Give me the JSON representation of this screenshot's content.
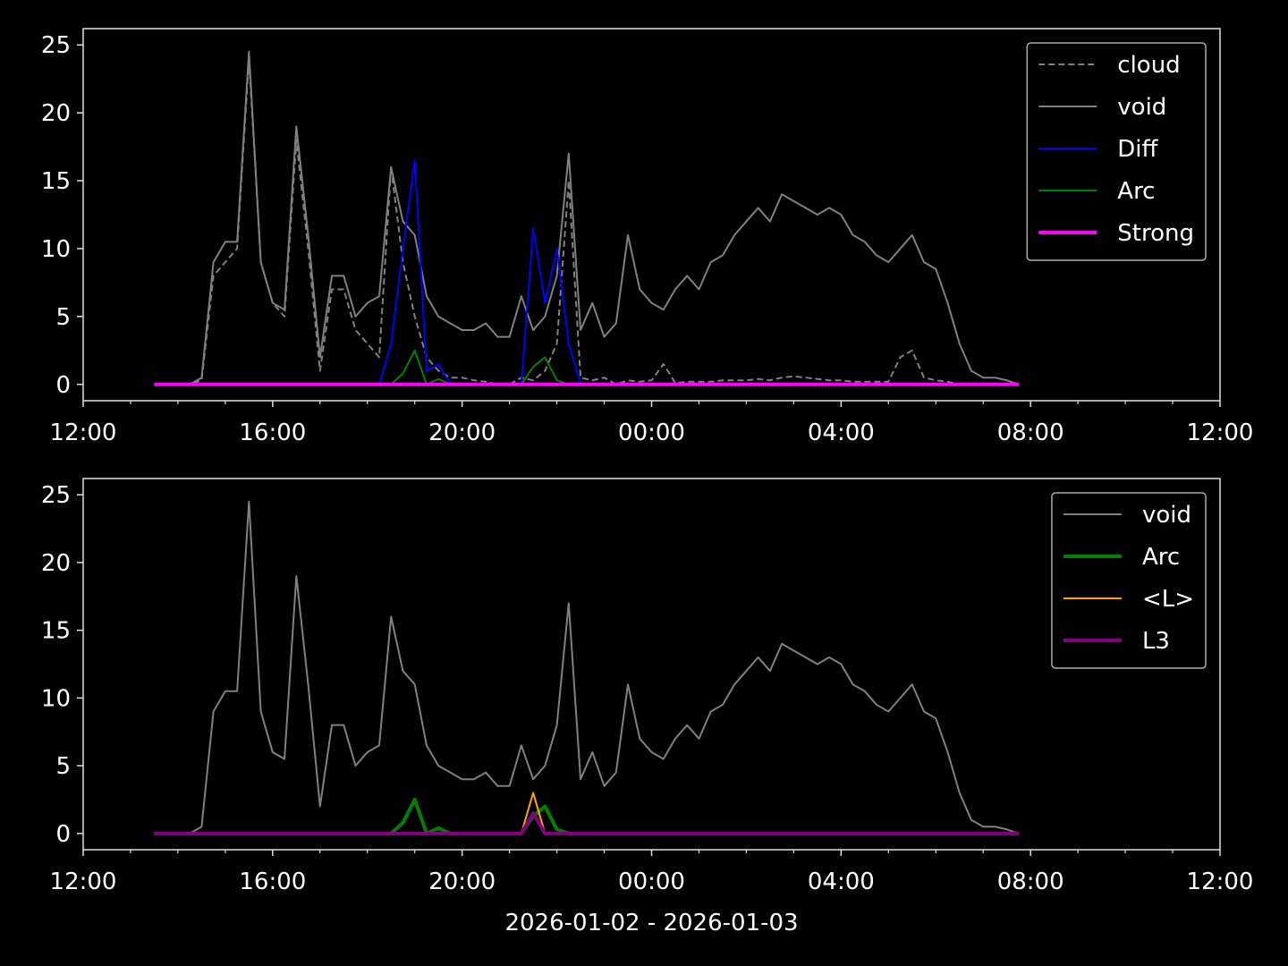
{
  "chart_data": [
    {
      "type": "line",
      "x": [
        13.5,
        13.75,
        14,
        14.25,
        14.5,
        14.75,
        15,
        15.25,
        15.5,
        15.75,
        16,
        16.25,
        16.5,
        16.75,
        17,
        17.25,
        17.5,
        17.75,
        18,
        18.25,
        18.5,
        18.75,
        19,
        19.25,
        19.5,
        19.75,
        20,
        20.25,
        20.5,
        20.75,
        21,
        21.25,
        21.5,
        21.75,
        22,
        22.25,
        22.5,
        22.75,
        23,
        23.25,
        23.5,
        23.75,
        24,
        24.25,
        24.5,
        24.75,
        25,
        25.25,
        25.5,
        25.75,
        26,
        26.25,
        26.5,
        26.75,
        27,
        27.25,
        27.5,
        27.75,
        28,
        28.25,
        28.5,
        28.75,
        29,
        29.25,
        29.5,
        29.75,
        30,
        30.25,
        30.5,
        30.75,
        31,
        31.25,
        31.5,
        31.75
      ],
      "xlim": [
        12,
        36
      ],
      "xticks": [
        {
          "value": 12,
          "label": "12:00"
        },
        {
          "value": 16,
          "label": "16:00"
        },
        {
          "value": 20,
          "label": "20:00"
        },
        {
          "value": 24,
          "label": "00:00"
        },
        {
          "value": 28,
          "label": "04:00"
        },
        {
          "value": 32,
          "label": "08:00"
        },
        {
          "value": 36,
          "label": "12:00"
        }
      ],
      "xminorticks": [
        13,
        14,
        15,
        17,
        18,
        19,
        21,
        22,
        23,
        25,
        26,
        27,
        29,
        30,
        31,
        33,
        34,
        35
      ],
      "ylim": [
        -1.2,
        26.2
      ],
      "yticks": [
        0,
        5,
        10,
        15,
        20,
        25
      ],
      "legend": "upper right",
      "series": [
        {
          "name": "cloud",
          "color": "#808080",
          "linestyle": "dashed",
          "linewidth": 2,
          "values": [
            0,
            0,
            0,
            0,
            0.3,
            8,
            9,
            10,
            24,
            9,
            6,
            5,
            18,
            10,
            1,
            7,
            7,
            4,
            3,
            2,
            16,
            9,
            5,
            2,
            1,
            0.5,
            0.5,
            0.3,
            0.2,
            0,
            0,
            0.5,
            0.3,
            1,
            3,
            15,
            0.5,
            0.3,
            0.5,
            0,
            0.3,
            0.2,
            0.3,
            1.5,
            0.1,
            0.2,
            0.2,
            0.2,
            0.3,
            0.3,
            0.3,
            0.4,
            0.3,
            0.5,
            0.6,
            0.5,
            0.4,
            0.3,
            0.3,
            0.2,
            0.2,
            0.2,
            0.2,
            2,
            2.5,
            0.5,
            0.3,
            0.2,
            0,
            0,
            0,
            0,
            0,
            0
          ]
        },
        {
          "name": "void",
          "color": "#808080",
          "linestyle": "solid",
          "linewidth": 2,
          "values": [
            0,
            0,
            0,
            0,
            0.5,
            9,
            10.5,
            10.5,
            24.5,
            9,
            6,
            5.5,
            19,
            11,
            2,
            8,
            8,
            5,
            6,
            6.5,
            16,
            12,
            11,
            6.5,
            5,
            4.5,
            4,
            4,
            4.5,
            3.5,
            3.5,
            6.5,
            4,
            5,
            8,
            17,
            4,
            6,
            3.5,
            4.5,
            11,
            7,
            6,
            5.5,
            7,
            8,
            7,
            9,
            9.5,
            11,
            12,
            13,
            12,
            14,
            13.5,
            13,
            12.5,
            13,
            12.5,
            11,
            10.5,
            9.5,
            9,
            10,
            11,
            9,
            8.5,
            6,
            3,
            1,
            0.5,
            0.5,
            0.3,
            0
          ]
        },
        {
          "name": "Diff",
          "color": "#0000ff",
          "linestyle": "solid",
          "linewidth": 2,
          "values": [
            0,
            0,
            0,
            0,
            0,
            0,
            0,
            0,
            0,
            0,
            0,
            0,
            0,
            0,
            0,
            0,
            0,
            0,
            0,
            0,
            3,
            10,
            16.5,
            1,
            1.5,
            0,
            0,
            0,
            0,
            0,
            0,
            0,
            11.5,
            6,
            10,
            3,
            0,
            0,
            0,
            0,
            0,
            0,
            0,
            0,
            0,
            0,
            0,
            0,
            0,
            0,
            0,
            0,
            0,
            0,
            0,
            0,
            0,
            0,
            0,
            0,
            0,
            0,
            0,
            0,
            0,
            0,
            0,
            0,
            0,
            0,
            0,
            0,
            0,
            0
          ]
        },
        {
          "name": "Arc",
          "color": "#008000",
          "linestyle": "solid",
          "linewidth": 2,
          "values": [
            0,
            0,
            0,
            0,
            0,
            0,
            0,
            0,
            0,
            0,
            0,
            0,
            0,
            0,
            0,
            0,
            0,
            0,
            0,
            0,
            0,
            0.8,
            2.5,
            0,
            0.4,
            0,
            0,
            0,
            0,
            0,
            0,
            0,
            1.3,
            2,
            0.3,
            0,
            0,
            0,
            0,
            0,
            0,
            0,
            0,
            0,
            0,
            0,
            0,
            0,
            0,
            0,
            0,
            0,
            0,
            0,
            0,
            0,
            0,
            0,
            0,
            0,
            0,
            0,
            0,
            0,
            0,
            0,
            0,
            0,
            0,
            0,
            0,
            0,
            0,
            0
          ]
        },
        {
          "name": "Strong",
          "color": "#ff00ff",
          "linestyle": "solid",
          "linewidth": 4,
          "values": [
            0,
            0,
            0,
            0,
            0,
            0,
            0,
            0,
            0,
            0,
            0,
            0,
            0,
            0,
            0,
            0,
            0,
            0,
            0,
            0,
            0,
            0,
            0,
            0,
            0,
            0,
            0,
            0,
            0,
            0,
            0,
            0,
            0,
            0,
            0,
            0,
            0,
            0,
            0,
            0,
            0,
            0,
            0,
            0,
            0,
            0,
            0,
            0,
            0,
            0,
            0,
            0,
            0,
            0,
            0,
            0,
            0,
            0,
            0,
            0,
            0,
            0,
            0,
            0,
            0,
            0,
            0,
            0,
            0,
            0,
            0,
            0,
            0,
            0
          ]
        }
      ]
    },
    {
      "type": "line",
      "x": [
        13.5,
        13.75,
        14,
        14.25,
        14.5,
        14.75,
        15,
        15.25,
        15.5,
        15.75,
        16,
        16.25,
        16.5,
        16.75,
        17,
        17.25,
        17.5,
        17.75,
        18,
        18.25,
        18.5,
        18.75,
        19,
        19.25,
        19.5,
        19.75,
        20,
        20.25,
        20.5,
        20.75,
        21,
        21.25,
        21.5,
        21.75,
        22,
        22.25,
        22.5,
        22.75,
        23,
        23.25,
        23.5,
        23.75,
        24,
        24.25,
        24.5,
        24.75,
        25,
        25.25,
        25.5,
        25.75,
        26,
        26.25,
        26.5,
        26.75,
        27,
        27.25,
        27.5,
        27.75,
        28,
        28.25,
        28.5,
        28.75,
        29,
        29.25,
        29.5,
        29.75,
        30,
        30.25,
        30.5,
        30.75,
        31,
        31.25,
        31.5,
        31.75
      ],
      "xlim": [
        12,
        36
      ],
      "xticks": [
        {
          "value": 12,
          "label": "12:00"
        },
        {
          "value": 16,
          "label": "16:00"
        },
        {
          "value": 20,
          "label": "20:00"
        },
        {
          "value": 24,
          "label": "00:00"
        },
        {
          "value": 28,
          "label": "04:00"
        },
        {
          "value": 32,
          "label": "08:00"
        },
        {
          "value": 36,
          "label": "12:00"
        }
      ],
      "xminorticks": [
        13,
        14,
        15,
        17,
        18,
        19,
        21,
        22,
        23,
        25,
        26,
        27,
        29,
        30,
        31,
        33,
        34,
        35
      ],
      "ylim": [
        -1.2,
        26.2
      ],
      "yticks": [
        0,
        5,
        10,
        15,
        20,
        25
      ],
      "x_label": "2026-01-02 - 2026-01-03",
      "legend": "upper right",
      "series": [
        {
          "name": "void",
          "color": "#808080",
          "linestyle": "solid",
          "linewidth": 2,
          "values": [
            0,
            0,
            0,
            0,
            0.5,
            9,
            10.5,
            10.5,
            24.5,
            9,
            6,
            5.5,
            19,
            11,
            2,
            8,
            8,
            5,
            6,
            6.5,
            16,
            12,
            11,
            6.5,
            5,
            4.5,
            4,
            4,
            4.5,
            3.5,
            3.5,
            6.5,
            4,
            5,
            8,
            17,
            4,
            6,
            3.5,
            4.5,
            11,
            7,
            6,
            5.5,
            7,
            8,
            7,
            9,
            9.5,
            11,
            12,
            13,
            12,
            14,
            13.5,
            13,
            12.5,
            13,
            12.5,
            11,
            10.5,
            9.5,
            9,
            10,
            11,
            9,
            8.5,
            6,
            3,
            1,
            0.5,
            0.5,
            0.3,
            0
          ]
        },
        {
          "name": "Arc",
          "color": "#008000",
          "linestyle": "solid",
          "linewidth": 4,
          "values": [
            0,
            0,
            0,
            0,
            0,
            0,
            0,
            0,
            0,
            0,
            0,
            0,
            0,
            0,
            0,
            0,
            0,
            0,
            0,
            0,
            0,
            0.8,
            2.5,
            0,
            0.4,
            0,
            0,
            0,
            0,
            0,
            0,
            0,
            1.3,
            2,
            0.3,
            0,
            0,
            0,
            0,
            0,
            0,
            0,
            0,
            0,
            0,
            0,
            0,
            0,
            0,
            0,
            0,
            0,
            0,
            0,
            0,
            0,
            0,
            0,
            0,
            0,
            0,
            0,
            0,
            0,
            0,
            0,
            0,
            0,
            0,
            0,
            0,
            0,
            0,
            0
          ]
        },
        {
          "name": "<L>",
          "color": "#ffa500",
          "linestyle": "solid",
          "linewidth": 2,
          "values": [
            0,
            0,
            0,
            0,
            0,
            0,
            0,
            0,
            0,
            0,
            0,
            0,
            0,
            0,
            0,
            0,
            0,
            0,
            0,
            0,
            0,
            0,
            0,
            0,
            0,
            0,
            0,
            0,
            0,
            0,
            0,
            0,
            3,
            0,
            0,
            0,
            0,
            0,
            0,
            0,
            0,
            0,
            0,
            0,
            0,
            0,
            0,
            0,
            0,
            0,
            0,
            0,
            0,
            0,
            0,
            0,
            0,
            0,
            0,
            0,
            0,
            0,
            0,
            0,
            0,
            0,
            0,
            0,
            0,
            0,
            0,
            0,
            0,
            0
          ]
        },
        {
          "name": "L3",
          "color": "#800080",
          "linestyle": "solid",
          "linewidth": 4,
          "values": [
            0,
            0,
            0,
            0,
            0,
            0,
            0,
            0,
            0,
            0,
            0,
            0,
            0,
            0,
            0,
            0,
            0,
            0,
            0,
            0,
            0,
            0,
            0,
            0,
            0,
            0,
            0,
            0,
            0,
            0,
            0,
            0,
            1.5,
            0,
            0,
            0,
            0,
            0,
            0,
            0,
            0,
            0,
            0,
            0,
            0,
            0,
            0,
            0,
            0,
            0,
            0,
            0,
            0,
            0,
            0,
            0,
            0,
            0,
            0,
            0,
            0,
            0,
            0,
            0,
            0,
            0,
            0,
            0,
            0,
            0,
            0,
            0,
            0,
            0
          ]
        }
      ]
    }
  ]
}
